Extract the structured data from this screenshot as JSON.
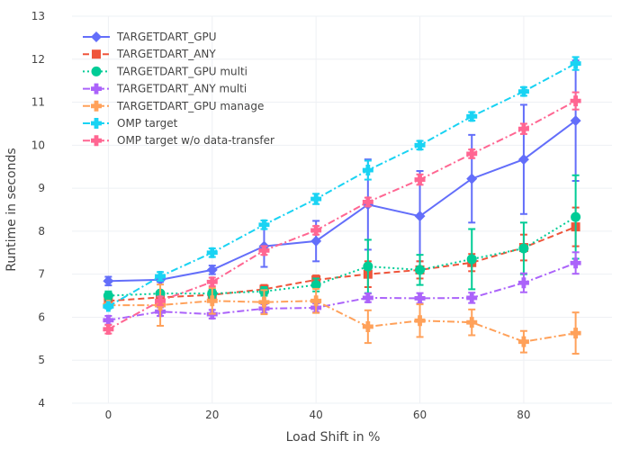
{
  "chart_data": {
    "type": "line",
    "xlabel": "Load Shift in %",
    "ylabel": "Runtime in seconds",
    "xlim": [
      -7,
      97
    ],
    "ylim": [
      4,
      13
    ],
    "x_ticks": [
      0,
      20,
      40,
      60,
      80
    ],
    "y_ticks": [
      4,
      5,
      6,
      7,
      8,
      9,
      10,
      11,
      12,
      13
    ],
    "grid": true,
    "legend_position": "top-left",
    "x": [
      0,
      10,
      20,
      30,
      40,
      50,
      60,
      70,
      80,
      90
    ],
    "series": [
      {
        "name": "TARGETDART_GPU",
        "color": "#636efa",
        "dash": "solid",
        "marker": "diamond",
        "values": [
          6.84,
          6.87,
          7.1,
          7.65,
          7.77,
          8.62,
          8.35,
          9.22,
          9.67,
          10.57
        ],
        "errors": [
          0.1,
          0.05,
          0.1,
          0.48,
          0.47,
          1.05,
          1.05,
          1.02,
          1.27,
          1.4
        ]
      },
      {
        "name": "TARGETDART_ANY",
        "color": "#ef553b",
        "dash": "dashed",
        "marker": "square",
        "values": [
          6.38,
          6.46,
          6.52,
          6.65,
          6.87,
          7.0,
          7.1,
          7.27,
          7.62,
          8.1
        ],
        "errors": [
          0.05,
          0.05,
          0.05,
          0.1,
          0.1,
          0.3,
          0.2,
          0.2,
          0.3,
          0.45
        ]
      },
      {
        "name": "TARGETDART_GPU multi",
        "color": "#00cc96",
        "dash": "dotted",
        "marker": "circle",
        "values": [
          6.5,
          6.55,
          6.55,
          6.6,
          6.75,
          7.18,
          7.1,
          7.35,
          7.6,
          8.33
        ],
        "errors": [
          0.1,
          0.05,
          0.1,
          0.1,
          0.15,
          0.62,
          0.35,
          0.7,
          0.6,
          0.97
        ]
      },
      {
        "name": "TARGETDART_ANY multi",
        "color": "#ab63fa",
        "dash": "dashdot",
        "marker": "cross",
        "values": [
          5.93,
          6.13,
          6.07,
          6.2,
          6.22,
          6.45,
          6.44,
          6.45,
          6.8,
          7.26
        ],
        "errors": [
          0.1,
          0.1,
          0.1,
          0.1,
          0.1,
          0.1,
          0.12,
          0.12,
          0.22,
          0.25
        ]
      },
      {
        "name": "TARGETDART_GPU manage",
        "color": "#ffa15a",
        "dash": "dashdot",
        "marker": "cross",
        "values": [
          6.28,
          6.28,
          6.38,
          6.35,
          6.38,
          5.78,
          5.92,
          5.88,
          5.43,
          5.63
        ],
        "errors": [
          0.05,
          0.48,
          0.3,
          0.28,
          0.28,
          0.38,
          0.38,
          0.3,
          0.25,
          0.48
        ]
      },
      {
        "name": "OMP target",
        "color": "#19d3f3",
        "dash": "dashdot",
        "marker": "cross",
        "values": [
          6.25,
          6.95,
          7.5,
          8.15,
          8.75,
          9.42,
          10.0,
          10.67,
          11.25,
          11.9
        ],
        "errors": [
          0.05,
          0.1,
          0.1,
          0.1,
          0.12,
          0.22,
          0.1,
          0.1,
          0.1,
          0.15
        ]
      },
      {
        "name": "OMP target w/o data-transfer",
        "color": "#ff6692",
        "dash": "dashdot",
        "marker": "cross",
        "values": [
          5.72,
          6.38,
          6.82,
          7.55,
          8.02,
          8.68,
          9.2,
          9.8,
          10.38,
          11.03
        ],
        "errors": [
          0.1,
          0.1,
          0.1,
          0.1,
          0.1,
          0.1,
          0.12,
          0.1,
          0.12,
          0.2
        ]
      }
    ]
  }
}
